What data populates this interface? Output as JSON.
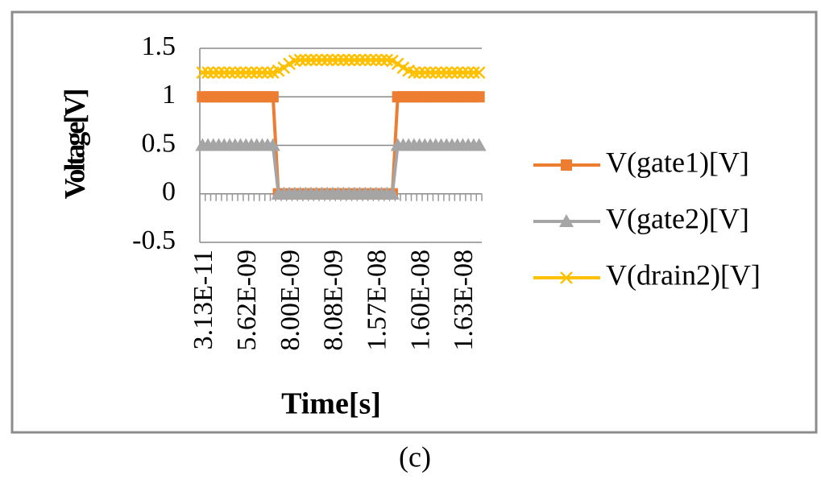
{
  "chart_data": {
    "type": "line",
    "x_label": "Time[s]",
    "y_label": "Voltage[V]",
    "caption": "(c)",
    "categories": [
      "3.13E-11",
      null,
      null,
      null,
      null,
      null,
      null,
      null,
      "5.62E-09",
      null,
      null,
      null,
      null,
      null,
      null,
      null,
      "8.00E-09",
      null,
      null,
      null,
      null,
      null,
      null,
      null,
      "8.08E-09",
      null,
      null,
      null,
      null,
      null,
      null,
      null,
      "1.57E-08",
      null,
      null,
      null,
      null,
      null,
      null,
      null,
      "1.60E-08",
      null,
      null,
      null,
      null,
      null,
      null,
      null,
      "1.63E-08",
      null,
      null,
      null
    ],
    "series": [
      {
        "name": "V(gate1)[V]",
        "color": "#ED7D31",
        "marker": "square",
        "values": [
          1,
          1,
          1,
          1,
          1,
          1,
          1,
          1,
          1,
          1,
          1,
          1,
          1,
          1,
          0,
          0,
          0,
          0,
          0,
          0,
          0,
          0,
          0,
          0,
          0,
          0,
          0,
          0,
          0,
          0,
          0,
          0,
          0,
          0,
          0,
          0,
          1,
          1,
          1,
          1,
          1,
          1,
          1,
          1,
          1,
          1,
          1,
          1,
          1,
          1,
          1,
          1
        ]
      },
      {
        "name": "V(gate2)[V]",
        "color": "#A5A5A5",
        "marker": "triangle",
        "values": [
          0.5,
          0.5,
          0.5,
          0.5,
          0.5,
          0.5,
          0.5,
          0.5,
          0.5,
          0.5,
          0.5,
          0.5,
          0.5,
          0.5,
          0,
          0,
          0,
          0,
          0,
          0,
          0,
          0,
          0,
          0,
          0,
          0,
          0,
          0,
          0,
          0,
          0,
          0,
          0,
          0,
          0,
          0,
          0.5,
          0.5,
          0.5,
          0.5,
          0.5,
          0.5,
          0.5,
          0.5,
          0.5,
          0.5,
          0.5,
          0.5,
          0.5,
          0.5,
          0.5,
          0.5
        ]
      },
      {
        "name": "V(drain2)[V]",
        "color": "#FFC000",
        "marker": "x",
        "values": [
          1.25,
          1.25,
          1.25,
          1.25,
          1.25,
          1.25,
          1.25,
          1.25,
          1.25,
          1.25,
          1.25,
          1.25,
          1.25,
          1.25,
          1.27,
          1.3,
          1.34,
          1.37,
          1.38,
          1.38,
          1.38,
          1.38,
          1.38,
          1.38,
          1.38,
          1.38,
          1.38,
          1.38,
          1.38,
          1.38,
          1.38,
          1.38,
          1.38,
          1.38,
          1.38,
          1.37,
          1.34,
          1.3,
          1.27,
          1.25,
          1.25,
          1.25,
          1.25,
          1.25,
          1.25,
          1.25,
          1.25,
          1.25,
          1.25,
          1.25,
          1.25,
          1.25
        ]
      }
    ],
    "ylim": [
      -0.5,
      1.5
    ],
    "yticks": [
      1.5,
      1,
      0.5,
      0,
      -0.5
    ],
    "grid": true,
    "legend": "right"
  }
}
